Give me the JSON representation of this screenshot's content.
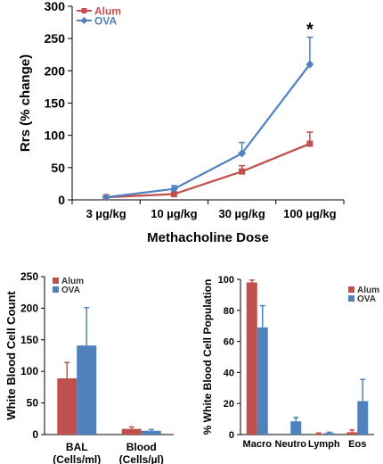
{
  "chart_data": [
    {
      "type": "line",
      "xlabel": "Methacholine Dose",
      "ylabel": "Rrs (% change)",
      "categories": [
        "3 µg/kg",
        "10 µg/kg",
        "30 µg/kg",
        "100 µg/kg"
      ],
      "ylim": [
        0,
        300
      ],
      "yticks": [
        "0",
        "50",
        "100",
        "150",
        "200",
        "250",
        "300"
      ],
      "legend": "top-left",
      "annotations": [
        {
          "text": "*",
          "category": "100 µg/kg",
          "series": "OVA"
        }
      ],
      "series": [
        {
          "name": "Alum",
          "color": "#c0504d",
          "marker": "square",
          "values": [
            4,
            9,
            44,
            87
          ],
          "errors": [
            1,
            3,
            9,
            18
          ]
        },
        {
          "name": "OVA",
          "color": "#4f81bd",
          "marker": "diamond",
          "values": [
            4,
            17,
            72,
            210
          ],
          "errors": [
            1,
            5,
            17,
            42
          ]
        }
      ]
    },
    {
      "type": "bar",
      "ylabel": "White Blood Cell Count",
      "categories": [
        "BAL\n(Cells/ml)",
        "Blood\n(Cells/µl)"
      ],
      "ylim": [
        0,
        250
      ],
      "yticks": [
        "0",
        "50",
        "100",
        "150",
        "200",
        "250"
      ],
      "legend": "top-left",
      "series": [
        {
          "name": "Alum",
          "color": "#c0504d",
          "values": [
            89,
            9
          ],
          "errors": [
            25,
            3
          ]
        },
        {
          "name": "OVA",
          "color": "#4f81bd",
          "values": [
            141,
            6
          ],
          "errors": [
            60,
            2
          ]
        }
      ]
    },
    {
      "type": "bar",
      "ylabel": "% White Blood Cell Population",
      "categories": [
        "Macro",
        "Neutro",
        "Lymph",
        "Eos"
      ],
      "ylim": [
        0,
        100
      ],
      "yticks": [
        "0",
        "20",
        "40",
        "60",
        "80",
        "100"
      ],
      "legend": "top-right",
      "series": [
        {
          "name": "Alum",
          "color": "#c0504d",
          "values": [
            98,
            0,
            0.5,
            1.5
          ],
          "errors": [
            1.5,
            0,
            0.5,
            1.5
          ]
        },
        {
          "name": "OVA",
          "color": "#4f81bd",
          "values": [
            69,
            8.5,
            1,
            21.5
          ],
          "errors": [
            14,
            2.5,
            0.5,
            14
          ]
        }
      ]
    }
  ]
}
